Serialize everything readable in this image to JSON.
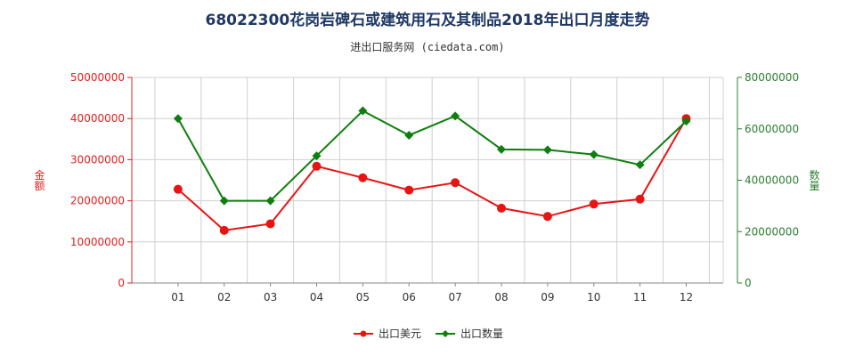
{
  "colors": {
    "left_axis": "#e02020",
    "right_axis": "#2e7d32",
    "amount_series": "#e81414",
    "quantity_series": "#0e7f0e",
    "grid": "#d0d0d0",
    "title": "#1f3864"
  },
  "chart_data": {
    "type": "line",
    "title": "68022300花岗岩碑石或建筑用石及其制品2018年出口月度走势",
    "subtitle": "进出口服务网 (ciedata.com)",
    "categories": [
      "01",
      "02",
      "03",
      "04",
      "05",
      "06",
      "07",
      "08",
      "09",
      "10",
      "11",
      "12"
    ],
    "left_axis": {
      "label": "金额",
      "ylim": [
        0,
        50000000
      ],
      "ticks": [
        "0",
        "10000000",
        "20000000",
        "30000000",
        "40000000",
        "50000000"
      ]
    },
    "right_axis": {
      "label": "数量",
      "ylim": [
        0,
        80000000
      ],
      "ticks": [
        "0",
        "20000000",
        "40000000",
        "60000000",
        "80000000"
      ]
    },
    "series": [
      {
        "name": "出口美元",
        "axis": "left",
        "marker": "circle",
        "values": [
          22800000,
          12800000,
          14400000,
          28400000,
          25600000,
          22600000,
          24400000,
          18200000,
          16200000,
          19200000,
          20400000,
          40000000
        ]
      },
      {
        "name": "出口数量",
        "axis": "right",
        "marker": "diamond",
        "values": [
          64000000,
          32000000,
          32000000,
          49500000,
          67000000,
          57500000,
          65000000,
          52000000,
          51800000,
          50000000,
          46000000,
          63000000
        ]
      }
    ],
    "grid": true,
    "legend_position": "bottom-center"
  }
}
